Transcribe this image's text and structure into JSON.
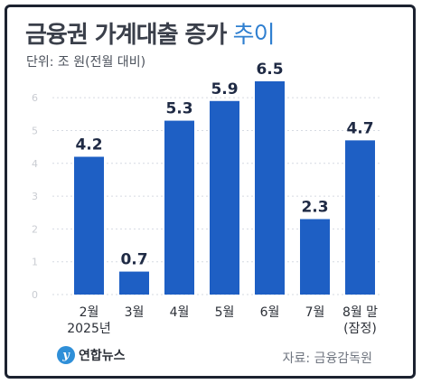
{
  "title": {
    "main": "금융권 가계대출 증가",
    "sub": "추이"
  },
  "unit_label": "단위: 조 원(전월 대비)",
  "logo_text": "연합뉴스",
  "source": "자료: 금융감독원",
  "colors": {
    "bar": "#1e5fc4",
    "title": "#3a3f4a",
    "accent": "#2f7fd0",
    "grid": "#d6dae2",
    "tick": "#c9ccd2"
  },
  "chart_data": {
    "type": "bar",
    "categories": [
      [
        "2월",
        "2025년"
      ],
      [
        "3월"
      ],
      [
        "4월"
      ],
      [
        "5월"
      ],
      [
        "6월"
      ],
      [
        "7월"
      ],
      [
        "8월 말",
        "(잠정)"
      ]
    ],
    "values": [
      4.2,
      0.7,
      5.3,
      5.9,
      6.5,
      2.3,
      4.7
    ],
    "value_labels": [
      "4.2",
      "0.7",
      "5.3",
      "5.9",
      "6.5",
      "2.3",
      "4.7"
    ],
    "y_ticks": [
      0,
      1,
      2,
      3,
      4,
      5,
      6
    ],
    "ylim": [
      0,
      6.5
    ],
    "grid": true,
    "title": "금융권 가계대출 증가 추이",
    "ylabel": "단위: 조 원(전월 대비)"
  }
}
